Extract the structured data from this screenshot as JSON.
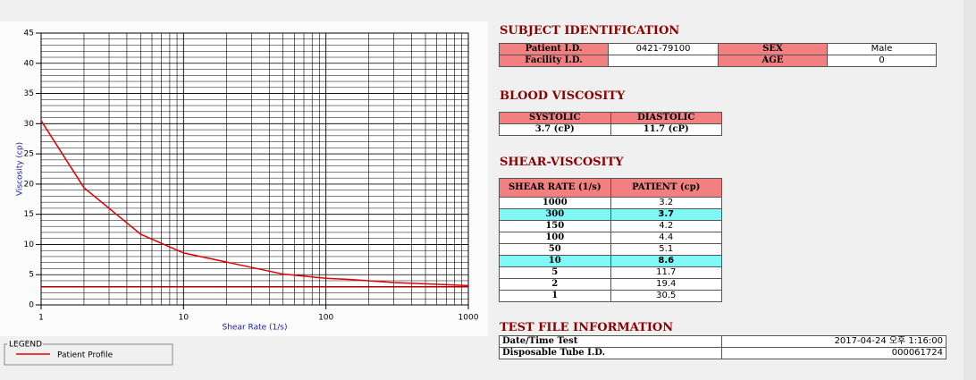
{
  "chart_data": {
    "type": "line",
    "x_label": "Shear Rate (1/s)",
    "y_label": "Viscosity (cp)",
    "xlim": [
      1,
      1000
    ],
    "ylim": [
      0,
      45
    ],
    "xticks": [
      1,
      10,
      100,
      1000
    ],
    "yticks": [
      0,
      5,
      10,
      15,
      20,
      25,
      30,
      35,
      40,
      45
    ],
    "log_x": true,
    "grid": true,
    "minor_grid": true,
    "legend_title": "LEGEND",
    "legend": "lower left",
    "series": [
      {
        "name": "Patient Profile",
        "color": "#e00000",
        "x": [
          1,
          2,
          5,
          10,
          50,
          100,
          150,
          300,
          1000
        ],
        "values": [
          30.5,
          19.4,
          11.7,
          8.6,
          5.1,
          4.4,
          4.2,
          3.7,
          3.2
        ]
      },
      {
        "color": "#b00000",
        "x": [
          1,
          1000
        ],
        "values": [
          3,
          3
        ]
      }
    ]
  },
  "subject": {
    "title": "SUBJECT IDENTIFICATION",
    "patient_id_label": "Patient I.D.",
    "patient_id": "0421-79100",
    "sex_label": "SEX",
    "sex": "Male",
    "facility_id_label": "Facility I.D.",
    "age_label": "AGE",
    "age": "0"
  },
  "blood": {
    "title": "BLOOD VISCOSITY",
    "headers": [
      "SYSTOLIC",
      "DIASTOLIC"
    ],
    "values": [
      "3.7 (cP)",
      "11.7 (cP)"
    ]
  },
  "shear": {
    "title": "SHEAR-VISCOSITY",
    "headers": [
      "SHEAR RATE (1/s)",
      "PATIENT (cp)"
    ],
    "highlight_rows": [
      1,
      5
    ],
    "rows": [
      [
        "1000",
        "3.2"
      ],
      [
        "300",
        "3.7"
      ],
      [
        "150",
        "4.2"
      ],
      [
        "100",
        "4.4"
      ],
      [
        "50",
        "5.1"
      ],
      [
        "10",
        "8.6"
      ],
      [
        "5",
        "11.7"
      ],
      [
        "2",
        "19.4"
      ],
      [
        "1",
        "30.5"
      ]
    ]
  },
  "test_file": {
    "title": "TEST FILE INFORMATION",
    "rows": [
      [
        "Date/Time Test",
        "2017-04-24   오후 1:16:00"
      ],
      [
        "Disposable Tube I.D.",
        "000061724"
      ]
    ]
  }
}
